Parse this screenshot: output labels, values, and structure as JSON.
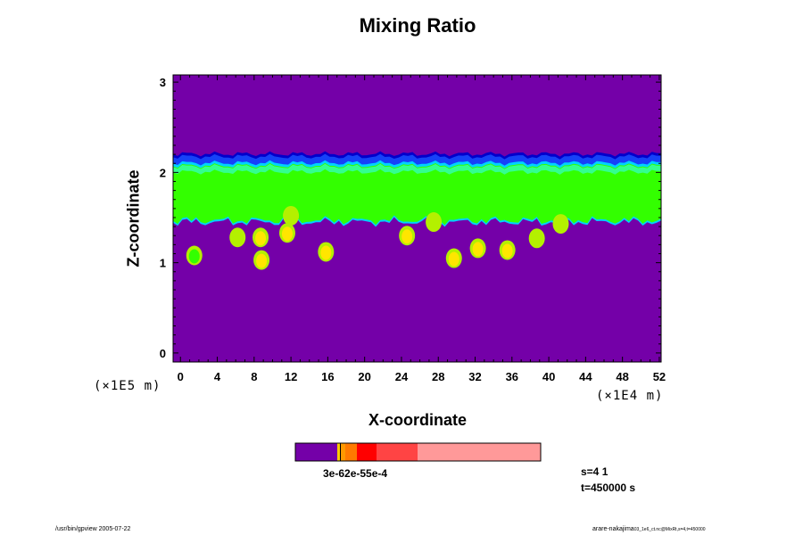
{
  "chart_data": {
    "type": "heatmap",
    "title": "Mixing Ratio",
    "xlabel": "X-coordinate",
    "ylabel": "Z-coordinate",
    "x_ticks": [
      "0",
      "4",
      "8",
      "12",
      "16",
      "20",
      "24",
      "28",
      "32",
      "36",
      "40",
      "44",
      "48",
      "52"
    ],
    "y_ticks": [
      "0",
      "1",
      "2",
      "3"
    ],
    "xlim": [
      -0.8,
      52.2
    ],
    "ylim": [
      -0.1,
      3.08
    ],
    "x_unit": "(×1E4 m)",
    "y_unit": "(×1E5 m)",
    "x_unit_label": "(×1E4 m)",
    "y_unit_label": "(×1E5 m)",
    "colorbar_label": "3e-62e-55e-4",
    "colors": {
      "background": "#7400a8",
      "dark_blue": "#0000cc",
      "blue": "#1a4cff",
      "cyan": "#00d2ff",
      "aqua": "#33ffcc",
      "green": "#33ff00",
      "yellow_green": "#b4f000",
      "yellow": "#ffe600"
    },
    "layers": [
      {
        "name": "upper-edge",
        "z_range": [
          2.08,
          2.24
        ],
        "color": "#1a4cff"
      },
      {
        "name": "green-band",
        "z_range": [
          1.47,
          2.13
        ],
        "color": "#33ff00"
      }
    ],
    "blobs": [
      {
        "x": 6.2,
        "z": 1.28,
        "color": "#b4f000"
      },
      {
        "x": 8.7,
        "z": 1.28,
        "color": "#ffe600"
      },
      {
        "x": 11.6,
        "z": 1.33,
        "color": "#ffe600"
      },
      {
        "x": 12.0,
        "z": 1.52,
        "color": "#b4f000"
      },
      {
        "x": 15.8,
        "z": 1.12,
        "color": "#ffe600"
      },
      {
        "x": 24.6,
        "z": 1.3,
        "color": "#ffe600"
      },
      {
        "x": 27.5,
        "z": 1.45,
        "color": "#b4f000"
      },
      {
        "x": 29.7,
        "z": 1.05,
        "color": "#ffe600"
      },
      {
        "x": 32.3,
        "z": 1.16,
        "color": "#ffe600"
      },
      {
        "x": 35.5,
        "z": 1.14,
        "color": "#ffe600"
      },
      {
        "x": 38.7,
        "z": 1.27,
        "color": "#b4f000"
      },
      {
        "x": 41.3,
        "z": 1.43,
        "color": "#b4f000"
      },
      {
        "x": 1.5,
        "z": 1.08,
        "color": "#33ff00"
      },
      {
        "x": 8.8,
        "z": 1.03,
        "color": "#ffe600"
      }
    ],
    "colorbar": {
      "segments": [
        {
          "color": "#7400a8",
          "weight": 47
        },
        {
          "color": "#ffcc00",
          "weight": 3
        },
        {
          "color": "#000000",
          "weight": 1
        },
        {
          "color": "#ff9900",
          "weight": 5
        },
        {
          "color": "#ff7a00",
          "weight": 13
        },
        {
          "color": "#ff0000",
          "weight": 22
        },
        {
          "color": "#ff4444",
          "weight": 46
        },
        {
          "color": "#ff9999",
          "weight": 138
        }
      ]
    }
  },
  "info": {
    "s": "s=4 1",
    "t": "t=450000 s"
  },
  "footer": {
    "left": "/usr/bin/gpview 2005-07-22",
    "right": "arare-nakajima",
    "right_small": "03_1e6_ct.nc@MixRt,s=4,t=450000"
  }
}
